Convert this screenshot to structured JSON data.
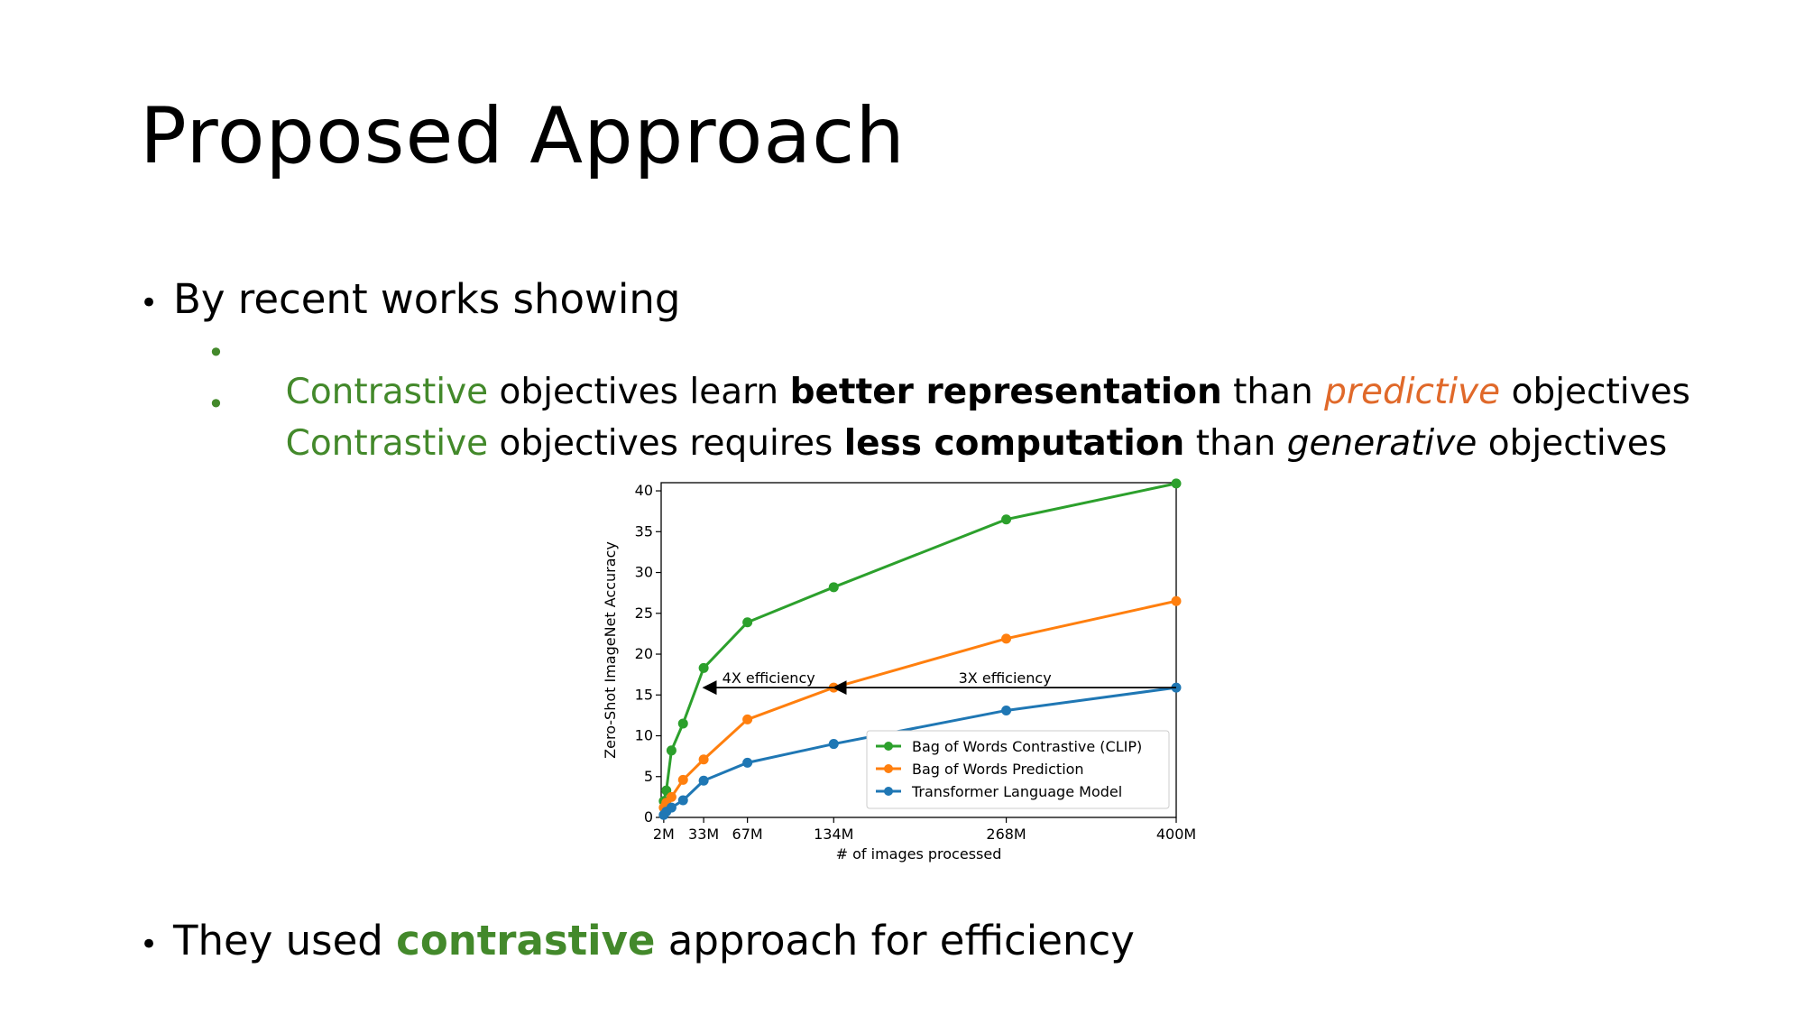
{
  "slide": {
    "title": "Proposed Approach",
    "bullet1": "By recent works showing",
    "sub1": {
      "w1": "Contrastive",
      "w2": " objectives learn ",
      "w3": "better representation",
      "w4": " than ",
      "w5": "predictive",
      "w6": " objectives"
    },
    "sub2": {
      "w1": "Contrastive",
      "w2": " objectives requires ",
      "w3": "less computation",
      "w4": " than ",
      "w5": "generative",
      "w6": " objectives"
    },
    "bullet2": {
      "w1": "They used ",
      "w2": "contrastive",
      "w3": " approach for efficiency"
    },
    "bullet_glyph": "•"
  },
  "colors": {
    "green_text": "#43892b",
    "orange_text": "#e0692a"
  },
  "chart_data": {
    "type": "line",
    "xlabel": "# of images processed",
    "ylabel": "Zero-Shot ImageNet Accuracy",
    "xlim": [
      0,
      400
    ],
    "ylim": [
      0,
      41
    ],
    "x_ticks": [
      {
        "value": 2,
        "label": "2M"
      },
      {
        "value": 33,
        "label": "33M"
      },
      {
        "value": 67,
        "label": "67M"
      },
      {
        "value": 134,
        "label": "134M"
      },
      {
        "value": 268,
        "label": "268M"
      },
      {
        "value": 400,
        "label": "400M"
      }
    ],
    "y_ticks": [
      0,
      5,
      10,
      15,
      20,
      25,
      30,
      35,
      40
    ],
    "legend_position": "lower-right",
    "series": [
      {
        "name": "Bag of Words Contrastive (CLIP)",
        "color": "#2ca02c",
        "points": [
          [
            2,
            2
          ],
          [
            4,
            3.3
          ],
          [
            8,
            8.2
          ],
          [
            17,
            11.5
          ],
          [
            33,
            18.3
          ],
          [
            67,
            23.9
          ],
          [
            134,
            28.2
          ],
          [
            268,
            36.5
          ],
          [
            400,
            40.9
          ]
        ]
      },
      {
        "name": "Bag of Words Prediction",
        "color": "#ff7f0e",
        "points": [
          [
            2,
            1.2
          ],
          [
            4,
            1.8
          ],
          [
            8,
            2.5
          ],
          [
            17,
            4.6
          ],
          [
            33,
            7.1
          ],
          [
            67,
            12
          ],
          [
            134,
            15.9
          ],
          [
            268,
            21.9
          ],
          [
            400,
            26.5
          ]
        ]
      },
      {
        "name": "Transformer Language Model",
        "color": "#1f77b4",
        "points": [
          [
            2,
            0.3
          ],
          [
            4,
            0.7
          ],
          [
            8,
            1.2
          ],
          [
            17,
            2.1
          ],
          [
            33,
            4.5
          ],
          [
            67,
            6.7
          ],
          [
            134,
            9
          ],
          [
            268,
            13.1
          ],
          [
            400,
            15.9
          ]
        ]
      }
    ],
    "annotations": [
      {
        "text": "4X efficiency",
        "from": [
          134,
          15.9
        ],
        "to": [
          33,
          15.9
        ]
      },
      {
        "text": "3X efficiency",
        "from": [
          400,
          15.9
        ],
        "to": [
          134,
          15.9
        ]
      }
    ]
  }
}
